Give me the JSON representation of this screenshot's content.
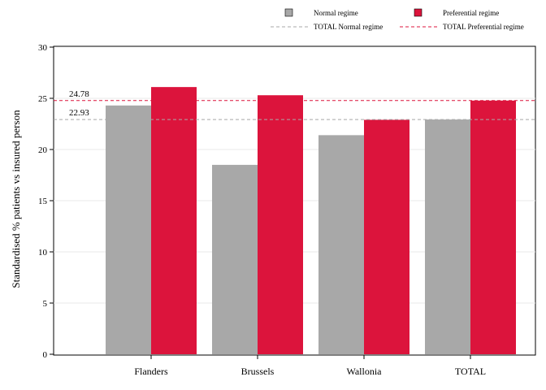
{
  "chart_data": {
    "type": "bar",
    "categories": [
      "Flanders",
      "Brussels",
      "Wallonia",
      "TOTAL"
    ],
    "series": [
      {
        "name": "Normal regime",
        "values": [
          24.3,
          18.5,
          21.4,
          22.93
        ],
        "color": "#a8a8a8"
      },
      {
        "name": "Preferential regime",
        "values": [
          26.1,
          25.3,
          22.9,
          24.78
        ],
        "color": "#dc143c"
      }
    ],
    "reference_lines": [
      {
        "name": "TOTAL Normal regime",
        "value": 22.93,
        "label": "22.93",
        "color": "#a8a8a8",
        "style": "dashed"
      },
      {
        "name": "TOTAL Preferential regime",
        "value": 24.78,
        "label": "24.78",
        "color": "#dc143c",
        "style": "dashed"
      }
    ],
    "title": "",
    "xlabel": "",
    "ylabel": "Standardised % patients vs insured person",
    "ylim": [
      0,
      30
    ],
    "yticks": [
      0,
      5,
      10,
      15,
      20,
      25,
      30
    ],
    "grid": true,
    "legend_position": "top-right"
  }
}
